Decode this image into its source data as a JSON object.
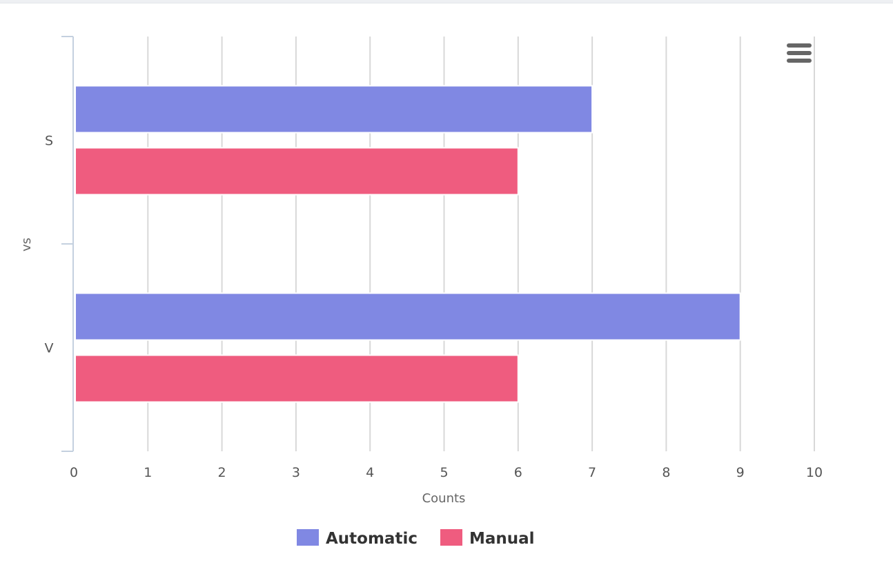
{
  "chart_data": {
    "type": "bar",
    "orientation": "horizontal",
    "categories": [
      "S",
      "V"
    ],
    "series": [
      {
        "name": "Automatic",
        "values": [
          7,
          9
        ],
        "color": "#8088e3"
      },
      {
        "name": "Manual",
        "values": [
          6,
          6
        ],
        "color": "#ef5c7f"
      }
    ],
    "xlabel": "Counts",
    "ylabel": "vs",
    "xlim": [
      0,
      10
    ],
    "x_ticks": [
      "0",
      "1",
      "2",
      "3",
      "4",
      "5",
      "6",
      "7",
      "8",
      "9",
      "10"
    ],
    "grid": true,
    "legend_position": "bottom-center"
  },
  "toolbar": {
    "menu_icon": "hamburger-menu-icon"
  }
}
